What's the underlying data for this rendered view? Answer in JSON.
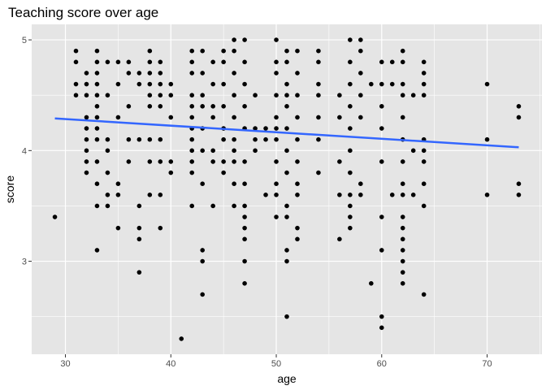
{
  "chart_data": {
    "type": "scatter",
    "title": "Teaching score over age",
    "xlabel": "age",
    "ylabel": "score",
    "xlim": [
      26.8,
      75.2
    ],
    "ylim": [
      2.16,
      5.14
    ],
    "x_ticks": [
      30,
      40,
      50,
      60,
      70
    ],
    "y_ticks": [
      3,
      4,
      5
    ],
    "grid": true,
    "colors": {
      "panel": "#e5e5e5",
      "grid": "#ffffff",
      "points": "#000000",
      "trend": "#3366ff"
    },
    "trend_line": {
      "method": "lm",
      "x": [
        29,
        73
      ],
      "y": [
        4.29,
        4.03
      ]
    },
    "points": [
      [
        29,
        3.4
      ],
      [
        31,
        4.9
      ],
      [
        31,
        4.8
      ],
      [
        31,
        4.6
      ],
      [
        31,
        4.5
      ],
      [
        32,
        4.7
      ],
      [
        32,
        4.6
      ],
      [
        32,
        4.5
      ],
      [
        32,
        4.3
      ],
      [
        32,
        4.2
      ],
      [
        32,
        4.1
      ],
      [
        32,
        4.0
      ],
      [
        32,
        3.9
      ],
      [
        32,
        3.8
      ],
      [
        33,
        4.9
      ],
      [
        33,
        4.8
      ],
      [
        33,
        4.7
      ],
      [
        33,
        4.6
      ],
      [
        33,
        4.5
      ],
      [
        33,
        4.4
      ],
      [
        33,
        4.3
      ],
      [
        33,
        4.2
      ],
      [
        33,
        4.1
      ],
      [
        33,
        3.9
      ],
      [
        33,
        3.7
      ],
      [
        33,
        3.5
      ],
      [
        33,
        3.1
      ],
      [
        34,
        4.8
      ],
      [
        34,
        4.5
      ],
      [
        34,
        4.1
      ],
      [
        34,
        4.0
      ],
      [
        34,
        3.8
      ],
      [
        34,
        3.6
      ],
      [
        34,
        3.5
      ],
      [
        35,
        4.8
      ],
      [
        35,
        4.6
      ],
      [
        35,
        4.3
      ],
      [
        35,
        3.7
      ],
      [
        35,
        3.6
      ],
      [
        35,
        3.3
      ],
      [
        36,
        4.8
      ],
      [
        36,
        4.7
      ],
      [
        36,
        4.4
      ],
      [
        36,
        4.1
      ],
      [
        36,
        3.9
      ],
      [
        37,
        4.7
      ],
      [
        37,
        4.6
      ],
      [
        37,
        4.1
      ],
      [
        37,
        3.5
      ],
      [
        37,
        3.3
      ],
      [
        37,
        3.2
      ],
      [
        37,
        2.9
      ],
      [
        38,
        4.9
      ],
      [
        38,
        4.8
      ],
      [
        38,
        4.7
      ],
      [
        38,
        4.6
      ],
      [
        38,
        4.5
      ],
      [
        38,
        4.4
      ],
      [
        38,
        4.1
      ],
      [
        38,
        3.9
      ],
      [
        38,
        3.6
      ],
      [
        39,
        4.8
      ],
      [
        39,
        4.7
      ],
      [
        39,
        4.6
      ],
      [
        39,
        4.5
      ],
      [
        39,
        4.4
      ],
      [
        39,
        4.1
      ],
      [
        39,
        3.9
      ],
      [
        39,
        3.6
      ],
      [
        39,
        3.3
      ],
      [
        40,
        4.6
      ],
      [
        40,
        4.5
      ],
      [
        40,
        4.3
      ],
      [
        40,
        3.9
      ],
      [
        40,
        3.8
      ],
      [
        41,
        2.3
      ],
      [
        42,
        4.9
      ],
      [
        42,
        4.8
      ],
      [
        42,
        4.7
      ],
      [
        42,
        4.5
      ],
      [
        42,
        4.4
      ],
      [
        42,
        4.3
      ],
      [
        42,
        4.2
      ],
      [
        42,
        4.1
      ],
      [
        42,
        4.0
      ],
      [
        42,
        3.9
      ],
      [
        42,
        3.8
      ],
      [
        42,
        3.5
      ],
      [
        43,
        4.9
      ],
      [
        43,
        4.7
      ],
      [
        43,
        4.5
      ],
      [
        43,
        4.4
      ],
      [
        43,
        4.2
      ],
      [
        43,
        4.0
      ],
      [
        43,
        3.7
      ],
      [
        43,
        3.1
      ],
      [
        43,
        3.0
      ],
      [
        43,
        2.7
      ],
      [
        44,
        4.8
      ],
      [
        44,
        4.6
      ],
      [
        44,
        4.4
      ],
      [
        44,
        4.3
      ],
      [
        44,
        4.0
      ],
      [
        44,
        3.9
      ],
      [
        44,
        3.5
      ],
      [
        45,
        4.9
      ],
      [
        45,
        4.8
      ],
      [
        45,
        4.6
      ],
      [
        45,
        4.4
      ],
      [
        45,
        4.2
      ],
      [
        45,
        4.1
      ],
      [
        45,
        3.9
      ],
      [
        45,
        3.8
      ],
      [
        46,
        5.0
      ],
      [
        46,
        4.9
      ],
      [
        46,
        4.7
      ],
      [
        46,
        4.5
      ],
      [
        46,
        4.3
      ],
      [
        46,
        4.1
      ],
      [
        46,
        4.0
      ],
      [
        46,
        3.9
      ],
      [
        46,
        3.7
      ],
      [
        46,
        3.5
      ],
      [
        47,
        5.0
      ],
      [
        47,
        4.8
      ],
      [
        47,
        4.6
      ],
      [
        47,
        4.4
      ],
      [
        47,
        4.2
      ],
      [
        47,
        3.9
      ],
      [
        47,
        3.7
      ],
      [
        47,
        3.5
      ],
      [
        47,
        3.4
      ],
      [
        47,
        3.3
      ],
      [
        47,
        3.2
      ],
      [
        47,
        3.0
      ],
      [
        47,
        2.8
      ],
      [
        48,
        4.5
      ],
      [
        48,
        4.2
      ],
      [
        48,
        4.1
      ],
      [
        48,
        4.0
      ],
      [
        49,
        4.2
      ],
      [
        49,
        4.1
      ],
      [
        49,
        3.6
      ],
      [
        50,
        5.0
      ],
      [
        50,
        4.8
      ],
      [
        50,
        4.7
      ],
      [
        50,
        4.5
      ],
      [
        50,
        4.3
      ],
      [
        50,
        4.2
      ],
      [
        50,
        4.1
      ],
      [
        50,
        3.9
      ],
      [
        50,
        3.7
      ],
      [
        50,
        3.6
      ],
      [
        50,
        3.4
      ],
      [
        51,
        4.9
      ],
      [
        51,
        4.8
      ],
      [
        51,
        4.6
      ],
      [
        51,
        4.5
      ],
      [
        51,
        4.4
      ],
      [
        51,
        4.2
      ],
      [
        51,
        4.0
      ],
      [
        51,
        3.8
      ],
      [
        51,
        3.5
      ],
      [
        51,
        3.4
      ],
      [
        51,
        3.1
      ],
      [
        51,
        3.0
      ],
      [
        51,
        2.5
      ],
      [
        52,
        4.9
      ],
      [
        52,
        4.7
      ],
      [
        52,
        4.5
      ],
      [
        52,
        4.3
      ],
      [
        52,
        4.1
      ],
      [
        52,
        3.9
      ],
      [
        52,
        3.7
      ],
      [
        52,
        3.6
      ],
      [
        52,
        3.3
      ],
      [
        52,
        3.2
      ],
      [
        54,
        4.9
      ],
      [
        54,
        4.8
      ],
      [
        54,
        4.6
      ],
      [
        54,
        4.5
      ],
      [
        54,
        4.3
      ],
      [
        54,
        4.1
      ],
      [
        54,
        3.8
      ],
      [
        56,
        4.5
      ],
      [
        56,
        4.3
      ],
      [
        56,
        3.9
      ],
      [
        56,
        3.6
      ],
      [
        56,
        3.2
      ],
      [
        57,
        5.0
      ],
      [
        57,
        4.8
      ],
      [
        57,
        4.6
      ],
      [
        57,
        4.4
      ],
      [
        57,
        4.2
      ],
      [
        57,
        4.0
      ],
      [
        57,
        3.8
      ],
      [
        57,
        3.6
      ],
      [
        57,
        3.5
      ],
      [
        57,
        3.4
      ],
      [
        57,
        3.3
      ],
      [
        58,
        5.0
      ],
      [
        58,
        4.9
      ],
      [
        58,
        4.7
      ],
      [
        58,
        4.5
      ],
      [
        58,
        4.3
      ],
      [
        58,
        3.7
      ],
      [
        58,
        3.6
      ],
      [
        59,
        4.6
      ],
      [
        59,
        2.8
      ],
      [
        60,
        4.8
      ],
      [
        60,
        4.6
      ],
      [
        60,
        4.4
      ],
      [
        60,
        4.2
      ],
      [
        60,
        3.9
      ],
      [
        60,
        3.4
      ],
      [
        60,
        3.1
      ],
      [
        60,
        2.5
      ],
      [
        60,
        2.4
      ],
      [
        61,
        4.8
      ],
      [
        61,
        4.6
      ],
      [
        61,
        3.6
      ],
      [
        62,
        4.9
      ],
      [
        62,
        4.8
      ],
      [
        62,
        4.6
      ],
      [
        62,
        4.5
      ],
      [
        62,
        4.3
      ],
      [
        62,
        4.1
      ],
      [
        62,
        3.9
      ],
      [
        62,
        3.7
      ],
      [
        62,
        3.6
      ],
      [
        62,
        3.4
      ],
      [
        62,
        3.3
      ],
      [
        62,
        3.2
      ],
      [
        62,
        3.1
      ],
      [
        62,
        3.0
      ],
      [
        62,
        2.9
      ],
      [
        62,
        2.8
      ],
      [
        63,
        4.5
      ],
      [
        63,
        4.0
      ],
      [
        63,
        3.6
      ],
      [
        64,
        4.8
      ],
      [
        64,
        4.7
      ],
      [
        64,
        4.6
      ],
      [
        64,
        4.5
      ],
      [
        64,
        4.1
      ],
      [
        64,
        4.0
      ],
      [
        64,
        3.9
      ],
      [
        64,
        3.7
      ],
      [
        64,
        3.5
      ],
      [
        64,
        2.7
      ],
      [
        70,
        4.6
      ],
      [
        70,
        4.1
      ],
      [
        70,
        3.6
      ],
      [
        73,
        4.4
      ],
      [
        73,
        4.3
      ],
      [
        73,
        3.7
      ],
      [
        73,
        3.6
      ]
    ]
  }
}
